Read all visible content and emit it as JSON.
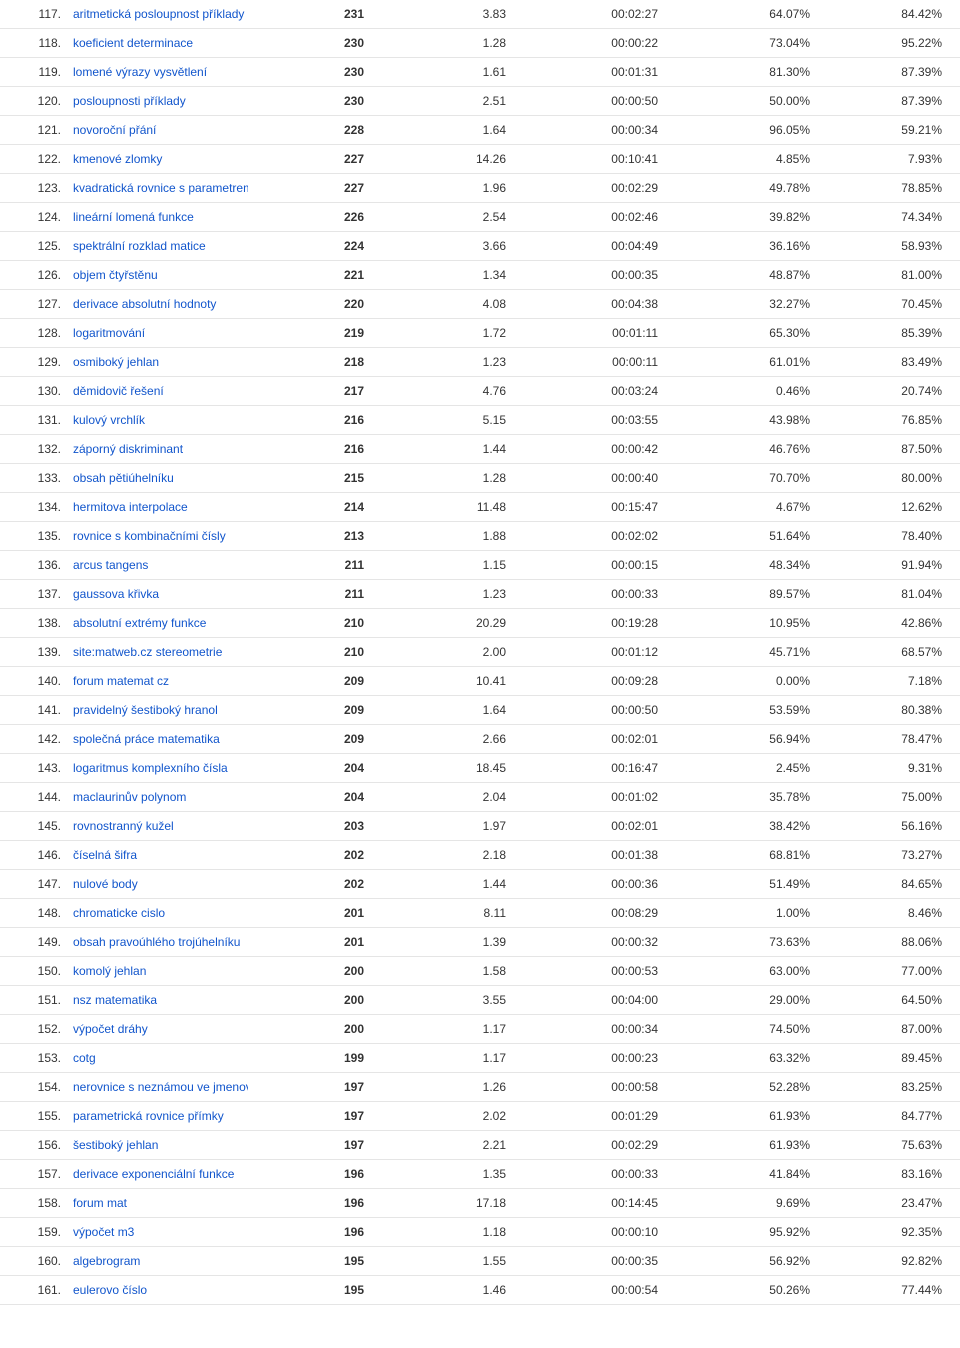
{
  "colors": {
    "link": "#1155cc",
    "text": "#333333",
    "row_border": "#e5e5e5",
    "background": "#ffffff"
  },
  "table": {
    "rows": [
      {
        "rank": "117.",
        "keyword": "aritmetická posloupnost příklady + řešení",
        "v1": "231",
        "v2": "3.83",
        "v3": "00:02:27",
        "v4": "64.07%",
        "v5": "84.42%"
      },
      {
        "rank": "118.",
        "keyword": "koeficient determinace",
        "v1": "230",
        "v2": "1.28",
        "v3": "00:00:22",
        "v4": "73.04%",
        "v5": "95.22%"
      },
      {
        "rank": "119.",
        "keyword": "lomené výrazy vysvětlení",
        "v1": "230",
        "v2": "1.61",
        "v3": "00:01:31",
        "v4": "81.30%",
        "v5": "87.39%"
      },
      {
        "rank": "120.",
        "keyword": "posloupnosti příklady",
        "v1": "230",
        "v2": "2.51",
        "v3": "00:00:50",
        "v4": "50.00%",
        "v5": "87.39%"
      },
      {
        "rank": "121.",
        "keyword": "novoroční přání",
        "v1": "228",
        "v2": "1.64",
        "v3": "00:00:34",
        "v4": "96.05%",
        "v5": "59.21%"
      },
      {
        "rank": "122.",
        "keyword": "kmenové zlomky",
        "v1": "227",
        "v2": "14.26",
        "v3": "00:10:41",
        "v4": "4.85%",
        "v5": "7.93%"
      },
      {
        "rank": "123.",
        "keyword": "kvadratická rovnice s parametrem",
        "v1": "227",
        "v2": "1.96",
        "v3": "00:02:29",
        "v4": "49.78%",
        "v5": "78.85%"
      },
      {
        "rank": "124.",
        "keyword": "lineární lomená funkce",
        "v1": "226",
        "v2": "2.54",
        "v3": "00:02:46",
        "v4": "39.82%",
        "v5": "74.34%"
      },
      {
        "rank": "125.",
        "keyword": "spektrální rozklad matice",
        "v1": "224",
        "v2": "3.66",
        "v3": "00:04:49",
        "v4": "36.16%",
        "v5": "58.93%"
      },
      {
        "rank": "126.",
        "keyword": "objem čtyřstěnu",
        "v1": "221",
        "v2": "1.34",
        "v3": "00:00:35",
        "v4": "48.87%",
        "v5": "81.00%"
      },
      {
        "rank": "127.",
        "keyword": "derivace absolutní hodnoty",
        "v1": "220",
        "v2": "4.08",
        "v3": "00:04:38",
        "v4": "32.27%",
        "v5": "70.45%"
      },
      {
        "rank": "128.",
        "keyword": "logaritmování",
        "v1": "219",
        "v2": "1.72",
        "v3": "00:01:11",
        "v4": "65.30%",
        "v5": "85.39%"
      },
      {
        "rank": "129.",
        "keyword": "osmiboký jehlan",
        "v1": "218",
        "v2": "1.23",
        "v3": "00:00:11",
        "v4": "61.01%",
        "v5": "83.49%"
      },
      {
        "rank": "130.",
        "keyword": "děmidovič řešení",
        "v1": "217",
        "v2": "4.76",
        "v3": "00:03:24",
        "v4": "0.46%",
        "v5": "20.74%"
      },
      {
        "rank": "131.",
        "keyword": "kulový vrchlík",
        "v1": "216",
        "v2": "5.15",
        "v3": "00:03:55",
        "v4": "43.98%",
        "v5": "76.85%"
      },
      {
        "rank": "132.",
        "keyword": "záporný diskriminant",
        "v1": "216",
        "v2": "1.44",
        "v3": "00:00:42",
        "v4": "46.76%",
        "v5": "87.50%"
      },
      {
        "rank": "133.",
        "keyword": "obsah pětiúhelníku",
        "v1": "215",
        "v2": "1.28",
        "v3": "00:00:40",
        "v4": "70.70%",
        "v5": "80.00%"
      },
      {
        "rank": "134.",
        "keyword": "hermitova interpolace",
        "v1": "214",
        "v2": "11.48",
        "v3": "00:15:47",
        "v4": "4.67%",
        "v5": "12.62%"
      },
      {
        "rank": "135.",
        "keyword": "rovnice s kombinačními čísly",
        "v1": "213",
        "v2": "1.88",
        "v3": "00:02:02",
        "v4": "51.64%",
        "v5": "78.40%"
      },
      {
        "rank": "136.",
        "keyword": "arcus tangens",
        "v1": "211",
        "v2": "1.15",
        "v3": "00:00:15",
        "v4": "48.34%",
        "v5": "91.94%"
      },
      {
        "rank": "137.",
        "keyword": "gaussova křivka",
        "v1": "211",
        "v2": "1.23",
        "v3": "00:00:33",
        "v4": "89.57%",
        "v5": "81.04%"
      },
      {
        "rank": "138.",
        "keyword": "absolutní extrémy funkce",
        "v1": "210",
        "v2": "20.29",
        "v3": "00:19:28",
        "v4": "10.95%",
        "v5": "42.86%"
      },
      {
        "rank": "139.",
        "keyword": "site:matweb.cz stereometrie",
        "v1": "210",
        "v2": "2.00",
        "v3": "00:01:12",
        "v4": "45.71%",
        "v5": "68.57%"
      },
      {
        "rank": "140.",
        "keyword": "forum matemat cz",
        "v1": "209",
        "v2": "10.41",
        "v3": "00:09:28",
        "v4": "0.00%",
        "v5": "7.18%"
      },
      {
        "rank": "141.",
        "keyword": "pravidelný šestiboký hranol",
        "v1": "209",
        "v2": "1.64",
        "v3": "00:00:50",
        "v4": "53.59%",
        "v5": "80.38%"
      },
      {
        "rank": "142.",
        "keyword": "společná práce matematika",
        "v1": "209",
        "v2": "2.66",
        "v3": "00:02:01",
        "v4": "56.94%",
        "v5": "78.47%"
      },
      {
        "rank": "143.",
        "keyword": "logaritmus komplexního čísla",
        "v1": "204",
        "v2": "18.45",
        "v3": "00:16:47",
        "v4": "2.45%",
        "v5": "9.31%"
      },
      {
        "rank": "144.",
        "keyword": "maclaurinův polynom",
        "v1": "204",
        "v2": "2.04",
        "v3": "00:01:02",
        "v4": "35.78%",
        "v5": "75.00%"
      },
      {
        "rank": "145.",
        "keyword": "rovnostranný kužel",
        "v1": "203",
        "v2": "1.97",
        "v3": "00:02:01",
        "v4": "38.42%",
        "v5": "56.16%"
      },
      {
        "rank": "146.",
        "keyword": "číselná šifra",
        "v1": "202",
        "v2": "2.18",
        "v3": "00:01:38",
        "v4": "68.81%",
        "v5": "73.27%"
      },
      {
        "rank": "147.",
        "keyword": "nulové body",
        "v1": "202",
        "v2": "1.44",
        "v3": "00:00:36",
        "v4": "51.49%",
        "v5": "84.65%"
      },
      {
        "rank": "148.",
        "keyword": "chromaticke cislo",
        "v1": "201",
        "v2": "8.11",
        "v3": "00:08:29",
        "v4": "1.00%",
        "v5": "8.46%"
      },
      {
        "rank": "149.",
        "keyword": "obsah pravoúhlého trojúhelníku",
        "v1": "201",
        "v2": "1.39",
        "v3": "00:00:32",
        "v4": "73.63%",
        "v5": "88.06%"
      },
      {
        "rank": "150.",
        "keyword": "komolý jehlan",
        "v1": "200",
        "v2": "1.58",
        "v3": "00:00:53",
        "v4": "63.00%",
        "v5": "77.00%"
      },
      {
        "rank": "151.",
        "keyword": "nsz matematika",
        "v1": "200",
        "v2": "3.55",
        "v3": "00:04:00",
        "v4": "29.00%",
        "v5": "64.50%"
      },
      {
        "rank": "152.",
        "keyword": "výpočet dráhy",
        "v1": "200",
        "v2": "1.17",
        "v3": "00:00:34",
        "v4": "74.50%",
        "v5": "87.00%"
      },
      {
        "rank": "153.",
        "keyword": "cotg",
        "v1": "199",
        "v2": "1.17",
        "v3": "00:00:23",
        "v4": "63.32%",
        "v5": "89.45%"
      },
      {
        "rank": "154.",
        "keyword": "nerovnice s neznámou ve jmenovateli",
        "v1": "197",
        "v2": "1.26",
        "v3": "00:00:58",
        "v4": "52.28%",
        "v5": "83.25%"
      },
      {
        "rank": "155.",
        "keyword": "parametrická rovnice přímky",
        "v1": "197",
        "v2": "2.02",
        "v3": "00:01:29",
        "v4": "61.93%",
        "v5": "84.77%"
      },
      {
        "rank": "156.",
        "keyword": "šestiboký jehlan",
        "v1": "197",
        "v2": "2.21",
        "v3": "00:02:29",
        "v4": "61.93%",
        "v5": "75.63%"
      },
      {
        "rank": "157.",
        "keyword": "derivace exponenciální funkce",
        "v1": "196",
        "v2": "1.35",
        "v3": "00:00:33",
        "v4": "41.84%",
        "v5": "83.16%"
      },
      {
        "rank": "158.",
        "keyword": "forum mat",
        "v1": "196",
        "v2": "17.18",
        "v3": "00:14:45",
        "v4": "9.69%",
        "v5": "23.47%"
      },
      {
        "rank": "159.",
        "keyword": "výpočet m3",
        "v1": "196",
        "v2": "1.18",
        "v3": "00:00:10",
        "v4": "95.92%",
        "v5": "92.35%"
      },
      {
        "rank": "160.",
        "keyword": "algebrogram",
        "v1": "195",
        "v2": "1.55",
        "v3": "00:00:35",
        "v4": "56.92%",
        "v5": "92.82%"
      },
      {
        "rank": "161.",
        "keyword": "eulerovo číslo",
        "v1": "195",
        "v2": "1.46",
        "v3": "00:00:54",
        "v4": "50.26%",
        "v5": "77.44%"
      }
    ]
  }
}
